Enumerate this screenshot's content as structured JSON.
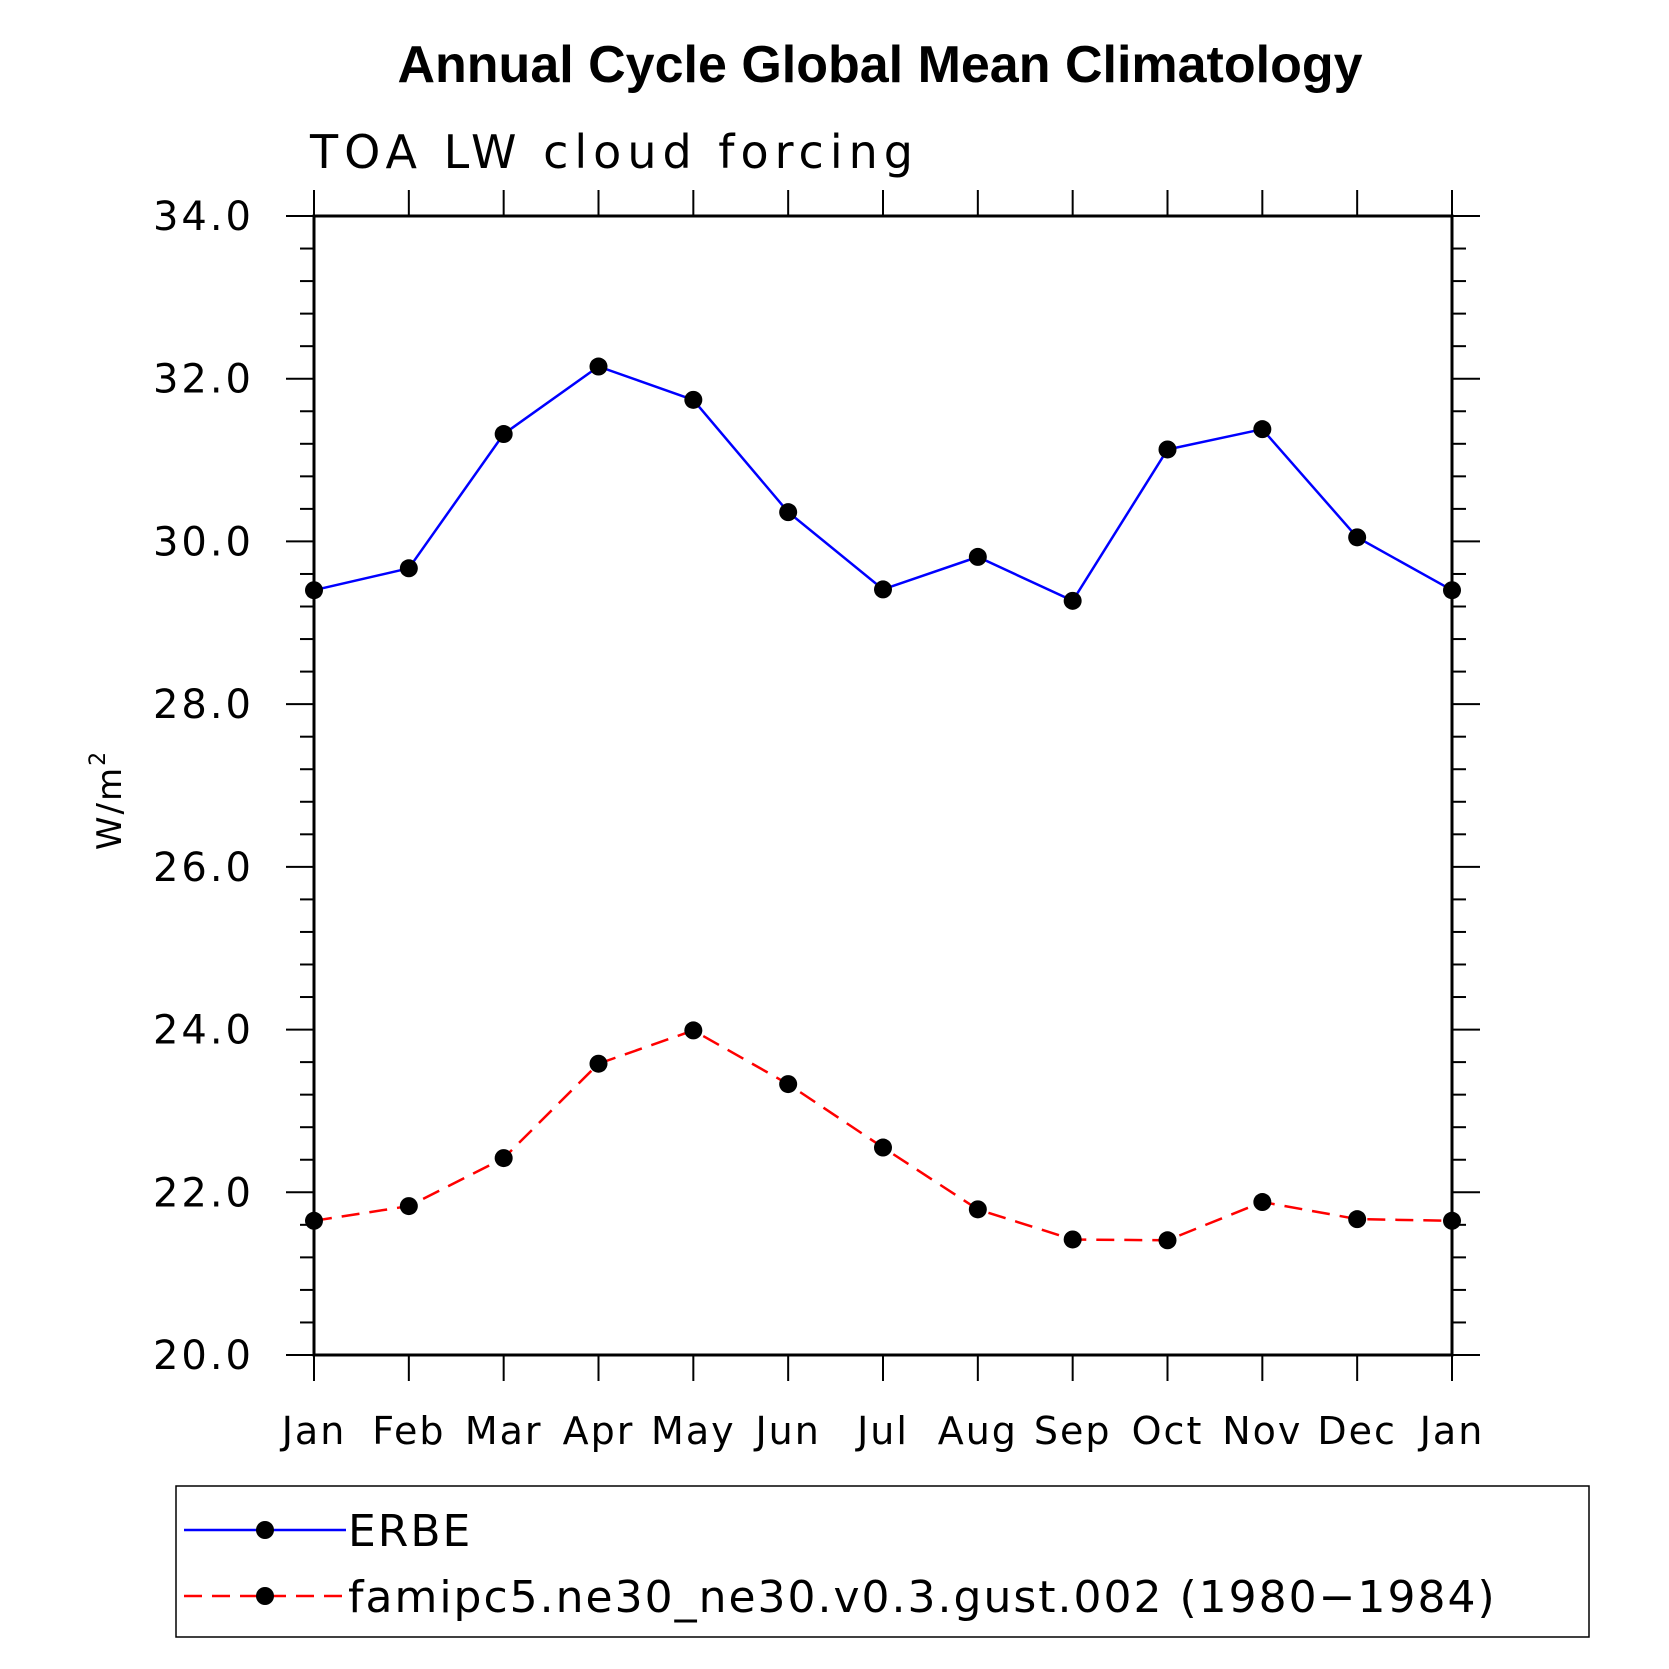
{
  "chart_data": {
    "type": "line",
    "title": "Annual Cycle Global Mean Climatology",
    "subtitle": "TOA LW cloud forcing",
    "ylabel_base": "W/m",
    "ylabel_sup": "2",
    "xlabel": "",
    "categories": [
      "Jan",
      "Feb",
      "Mar",
      "Apr",
      "May",
      "Jun",
      "Jul",
      "Aug",
      "Sep",
      "Oct",
      "Nov",
      "Dec",
      "Jan"
    ],
    "ylim": [
      20.0,
      34.0
    ],
    "yticks": [
      "20.0",
      "22.0",
      "24.0",
      "26.0",
      "28.0",
      "30.0",
      "32.0",
      "34.0"
    ],
    "series": [
      {
        "name": "ERBE",
        "color": "#0000ff",
        "dash": "solid",
        "marker": "circle",
        "values": [
          29.4,
          29.67,
          31.32,
          32.15,
          31.74,
          30.36,
          29.41,
          29.81,
          29.27,
          31.13,
          31.38,
          30.05,
          29.4
        ]
      },
      {
        "name": "famipc5.ne30_ne30.v0.3.gust.002 (1980−1984)",
        "color": "#ff0000",
        "dash": "dashed",
        "marker": "circle",
        "values": [
          21.65,
          21.83,
          22.42,
          23.58,
          23.99,
          23.33,
          22.55,
          21.79,
          21.42,
          21.41,
          21.88,
          21.67,
          21.65
        ]
      }
    ],
    "legend_position": "bottom"
  }
}
